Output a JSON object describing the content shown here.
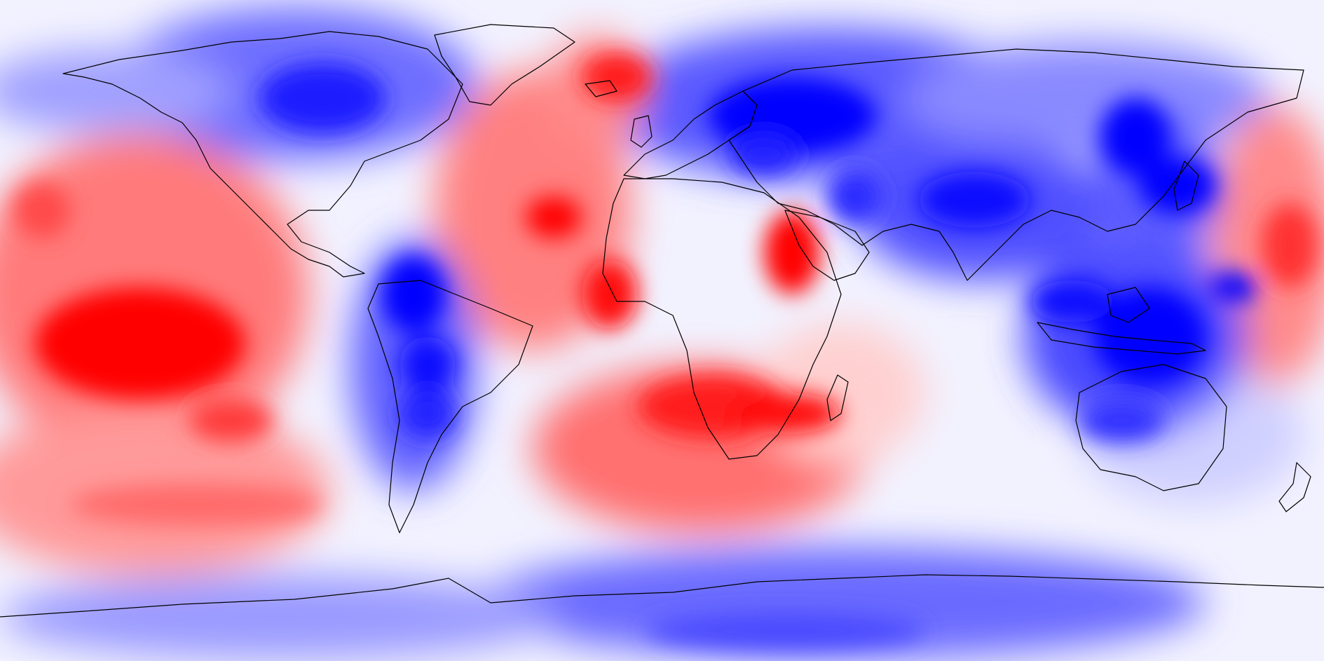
{
  "map": {
    "projection": "equirectangular",
    "colormap": {
      "negative": "#0000ff",
      "zero": "#ffffff",
      "positive": "#ff0000"
    },
    "coastline_color": "#000000",
    "features": {
      "positive_anomalies": [
        "north-atlantic",
        "north-pacific",
        "central-pacific",
        "south-pacific",
        "tropical-atlantic",
        "east-africa",
        "south-atlantic",
        "south-indian-ocean",
        "west-pacific"
      ],
      "negative_anomalies": [
        "canada",
        "siberia",
        "central-asia",
        "india-tibet",
        "east-asia",
        "amazon",
        "patagonia",
        "australia",
        "indonesia",
        "antarctica"
      ]
    }
  }
}
